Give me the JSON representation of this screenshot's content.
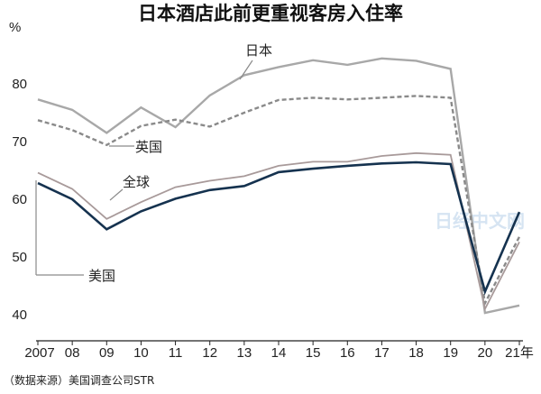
{
  "chart_data": {
    "type": "line",
    "title": "日本酒店此前更重视客房入住率",
    "ylabel": "%",
    "xlabel": "",
    "ylim": [
      38,
      90
    ],
    "yticks": [
      40,
      50,
      60,
      70,
      80
    ],
    "categories": [
      "2007",
      "08",
      "09",
      "10",
      "11",
      "12",
      "13",
      "14",
      "15",
      "16",
      "17",
      "18",
      "19",
      "20",
      "21年"
    ],
    "series": [
      {
        "name": "日本",
        "color": "#a8a8a8",
        "style": "solid",
        "values": [
          77.3,
          75.5,
          71.5,
          75.9,
          72.5,
          78.0,
          81.5,
          82.9,
          84.1,
          83.3,
          84.4,
          84.0,
          82.6,
          40.3,
          41.6
        ]
      },
      {
        "name": "英国",
        "color": "#8a8a8a",
        "style": "dashed",
        "values": [
          73.7,
          72.0,
          69.4,
          72.7,
          73.8,
          72.6,
          75.0,
          77.2,
          77.6,
          77.3,
          77.6,
          77.9,
          77.6,
          42.0,
          53.5
        ]
      },
      {
        "name": "全球",
        "color": "#a89a9a",
        "style": "solid",
        "values": [
          64.6,
          61.8,
          56.6,
          59.5,
          62.1,
          63.2,
          64.0,
          65.8,
          66.5,
          66.5,
          67.5,
          68.0,
          67.7,
          41.0,
          52.6
        ]
      },
      {
        "name": "美国",
        "color": "#15324f",
        "style": "solid",
        "values": [
          62.8,
          60.0,
          54.8,
          57.9,
          60.1,
          61.6,
          62.3,
          64.7,
          65.3,
          65.8,
          66.2,
          66.4,
          66.1,
          44.0,
          57.8
        ]
      }
    ],
    "grid": false,
    "legend": "inline labels"
  },
  "source_note": "（数据来源）美国调查公司STR",
  "watermark": "日经中文网"
}
